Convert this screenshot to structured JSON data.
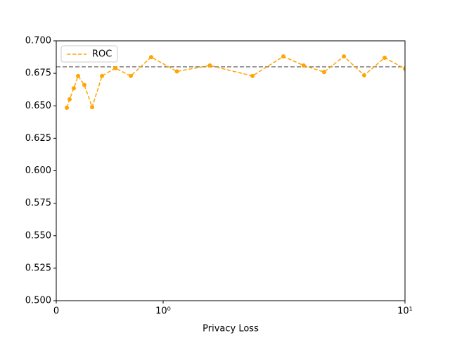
{
  "chart_data": {
    "type": "line",
    "xlabel": "Privacy Loss",
    "xscale": "symlog",
    "x": [
      0.099,
      0.125,
      0.164,
      0.204,
      0.263,
      0.336,
      0.428,
      0.553,
      0.697,
      0.888,
      1.14,
      1.56,
      2.34,
      3.14,
      3.81,
      4.63,
      5.59,
      6.78,
      8.24,
      10
    ],
    "series": [
      {
        "name": "ROC",
        "color": "#ffa500",
        "values": [
          0.6485,
          0.655,
          0.6635,
          0.673,
          0.666,
          0.649,
          0.673,
          0.679,
          0.673,
          0.6875,
          0.6765,
          0.681,
          0.673,
          0.688,
          0.681,
          0.676,
          0.688,
          0.6735,
          0.687,
          0.6785
        ]
      }
    ],
    "reference_line": {
      "value": 0.68,
      "color": "#808080"
    },
    "xlim": [
      0,
      10
    ],
    "xticks": [
      0,
      {
        "value": 1,
        "label": "10⁰"
      },
      {
        "value": 10,
        "label": "10¹"
      }
    ],
    "ylim": [
      0.5,
      0.7
    ],
    "yticks": [
      {
        "value": 0.5,
        "label": "0.500"
      },
      {
        "value": 0.525,
        "label": "0.525"
      },
      {
        "value": 0.55,
        "label": "0.550"
      },
      {
        "value": 0.575,
        "label": "0.575"
      },
      {
        "value": 0.6,
        "label": "0.600"
      },
      {
        "value": 0.625,
        "label": "0.625"
      },
      {
        "value": 0.65,
        "label": "0.650"
      },
      {
        "value": 0.675,
        "label": "0.675"
      },
      {
        "value": 0.7,
        "label": "0.700"
      }
    ],
    "legend": "upper left"
  }
}
